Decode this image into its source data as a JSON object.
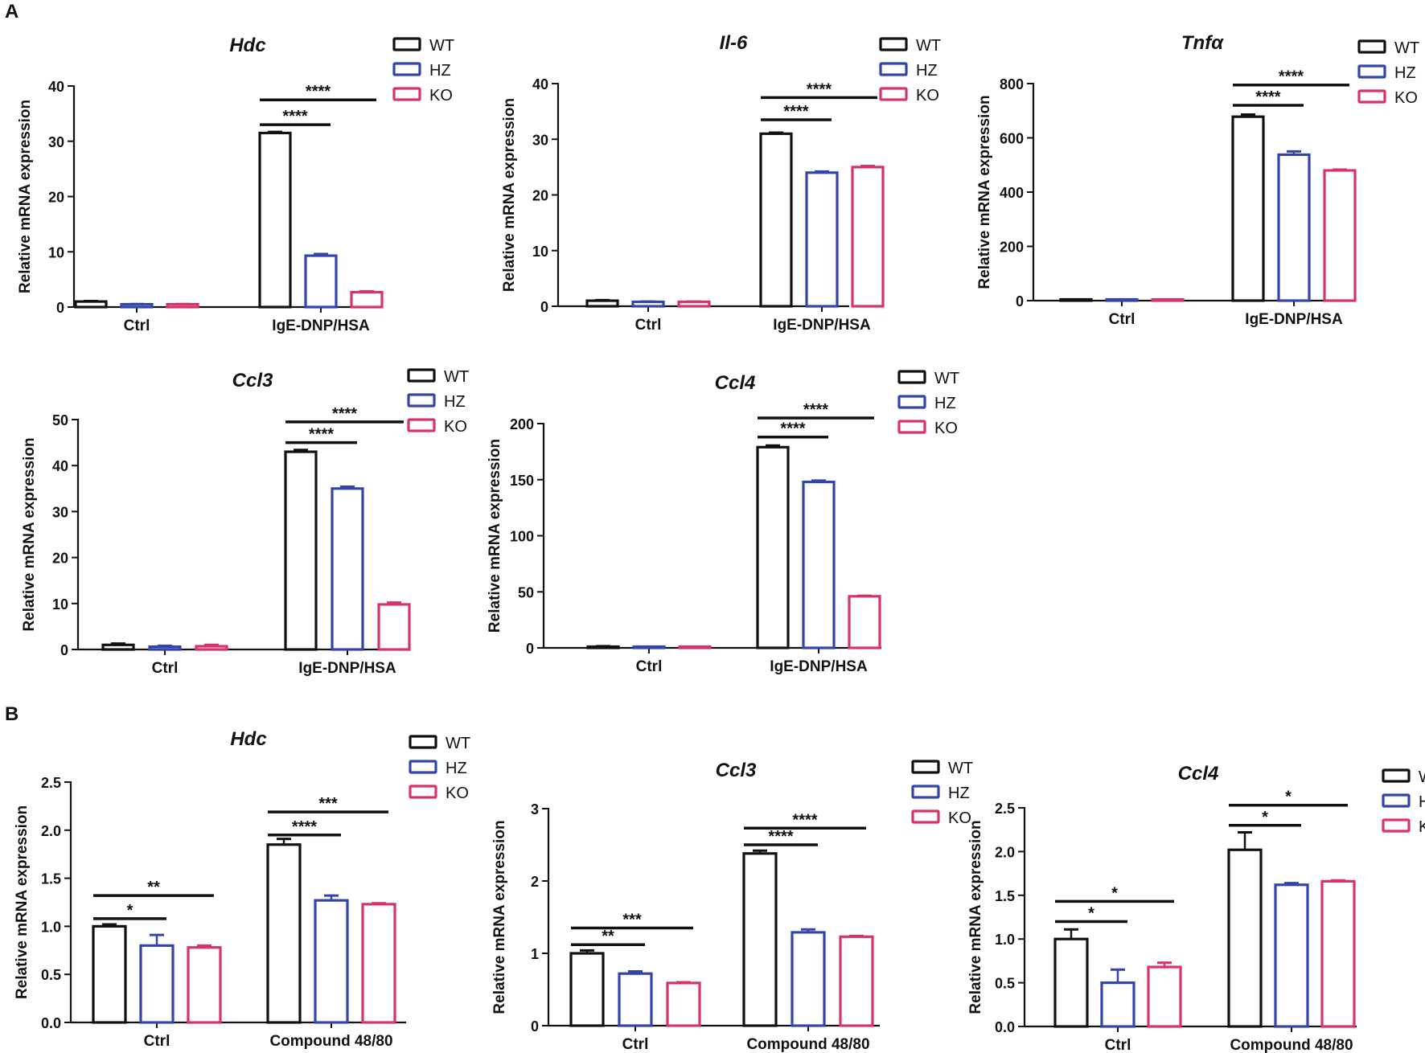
{
  "panel_labels": [
    "A",
    "B"
  ],
  "colors": {
    "WT": "#111111",
    "HZ": "#3344aa",
    "KO": "#d6336c",
    "axis": "#111111"
  },
  "chart_data": [
    {
      "type": "bar",
      "title": "Hdc",
      "ylabel": "Relative mRNA expression",
      "ylim": [
        0,
        40
      ],
      "yticks": [
        "0",
        "10",
        "20",
        "30",
        "40"
      ],
      "categories": [
        "Ctrl",
        "IgE-DNP/HSA"
      ],
      "legend": [
        "WT",
        "HZ",
        "KO"
      ],
      "series": [
        {
          "name": "WT",
          "values": [
            1.0,
            31.5
          ],
          "errors": [
            0.1,
            0.2
          ]
        },
        {
          "name": "HZ",
          "values": [
            0.5,
            9.3
          ],
          "errors": [
            0.05,
            0.3
          ]
        },
        {
          "name": "KO",
          "values": [
            0.5,
            2.7
          ],
          "errors": [
            0.05,
            0.15
          ]
        }
      ],
      "significance": [
        {
          "label": "****",
          "group": 1,
          "from": 0,
          "to": 1,
          "y": 33
        },
        {
          "label": "****",
          "group": 1,
          "from": 0,
          "to": 2,
          "y": 37.5
        }
      ]
    },
    {
      "type": "bar",
      "title": "Il-6",
      "ylabel": "Relative mRNA expression",
      "ylim": [
        0,
        40
      ],
      "yticks": [
        "0",
        "10",
        "20",
        "30",
        "40"
      ],
      "categories": [
        "Ctrl",
        "IgE-DNP/HSA"
      ],
      "legend": [
        "WT",
        "HZ",
        "KO"
      ],
      "series": [
        {
          "name": "WT",
          "values": [
            1.0,
            31.0
          ],
          "errors": [
            0.1,
            0.2
          ]
        },
        {
          "name": "HZ",
          "values": [
            0.8,
            24.0
          ],
          "errors": [
            0.05,
            0.2
          ]
        },
        {
          "name": "KO",
          "values": [
            0.8,
            25.0
          ],
          "errors": [
            0.05,
            0.2
          ]
        }
      ],
      "significance": [
        {
          "label": "****",
          "group": 1,
          "from": 0,
          "to": 1,
          "y": 33.5
        },
        {
          "label": "****",
          "group": 1,
          "from": 0,
          "to": 2,
          "y": 37.5
        }
      ]
    },
    {
      "type": "bar",
      "title": "Tnfα",
      "ylabel": "Relative mRNA expression",
      "ylim": [
        0,
        800
      ],
      "yticks": [
        "0",
        "200",
        "400",
        "600",
        "800"
      ],
      "categories": [
        "Ctrl",
        "IgE-DNP/HSA"
      ],
      "legend": [
        "WT",
        "HZ",
        "KO"
      ],
      "series": [
        {
          "name": "WT",
          "values": [
            1,
            678
          ],
          "errors": [
            0.5,
            8
          ]
        },
        {
          "name": "HZ",
          "values": [
            1,
            538
          ],
          "errors": [
            0.5,
            12
          ]
        },
        {
          "name": "KO",
          "values": [
            1,
            480
          ],
          "errors": [
            0.5,
            3
          ]
        }
      ],
      "significance": [
        {
          "label": "****",
          "group": 1,
          "from": 0,
          "to": 1,
          "y": 720
        },
        {
          "label": "****",
          "group": 1,
          "from": 0,
          "to": 2,
          "y": 795
        }
      ]
    },
    {
      "type": "bar",
      "title": "Ccl3",
      "ylabel": "Relative mRNA expression",
      "ylim": [
        0,
        50
      ],
      "yticks": [
        "0",
        "10",
        "20",
        "30",
        "40",
        "50"
      ],
      "categories": [
        "Ctrl",
        "IgE-DNP/HSA"
      ],
      "legend": [
        "WT",
        "HZ",
        "KO"
      ],
      "series": [
        {
          "name": "WT",
          "values": [
            1.0,
            43.0
          ],
          "errors": [
            0.3,
            0.4
          ]
        },
        {
          "name": "HZ",
          "values": [
            0.6,
            35.0
          ],
          "errors": [
            0.2,
            0.4
          ]
        },
        {
          "name": "KO",
          "values": [
            0.7,
            9.8
          ],
          "errors": [
            0.3,
            0.4
          ]
        }
      ],
      "significance": [
        {
          "label": "****",
          "group": 1,
          "from": 0,
          "to": 1,
          "y": 45
        },
        {
          "label": "****",
          "group": 1,
          "from": 0,
          "to": 2,
          "y": 49.5
        }
      ]
    },
    {
      "type": "bar",
      "title": "Ccl4",
      "ylabel": "Relative mRNA expression",
      "ylim": [
        0,
        200
      ],
      "yticks": [
        "0",
        "50",
        "100",
        "150",
        "200"
      ],
      "categories": [
        "Ctrl",
        "IgE-DNP/HSA"
      ],
      "legend": [
        "WT",
        "HZ",
        "KO"
      ],
      "series": [
        {
          "name": "WT",
          "values": [
            1,
            179
          ],
          "errors": [
            0.5,
            1.5
          ]
        },
        {
          "name": "HZ",
          "values": [
            0.5,
            148
          ],
          "errors": [
            0.3,
            1.2
          ]
        },
        {
          "name": "KO",
          "values": [
            0.5,
            46
          ],
          "errors": [
            0.3,
            0.5
          ]
        }
      ],
      "significance": [
        {
          "label": "****",
          "group": 1,
          "from": 0,
          "to": 1,
          "y": 188
        },
        {
          "label": "****",
          "group": 1,
          "from": 0,
          "to": 2,
          "y": 205
        }
      ]
    },
    {
      "type": "bar",
      "title": "Hdc",
      "ylabel": "Relative mRNA expression",
      "ylim": [
        0,
        2.5
      ],
      "yticks": [
        "0.0",
        "0.5",
        "1.0",
        "1.5",
        "2.0",
        "2.5"
      ],
      "categories": [
        "Ctrl",
        "Compound 48/80"
      ],
      "legend": [
        "WT",
        "HZ",
        "KO"
      ],
      "series": [
        {
          "name": "WT",
          "values": [
            1.0,
            1.85
          ],
          "errors": [
            0.02,
            0.06
          ]
        },
        {
          "name": "HZ",
          "values": [
            0.8,
            1.27
          ],
          "errors": [
            0.11,
            0.05
          ]
        },
        {
          "name": "KO",
          "values": [
            0.78,
            1.23
          ],
          "errors": [
            0.02,
            0.01
          ]
        }
      ],
      "significance": [
        {
          "label": "*",
          "group": 0,
          "from": 0,
          "to": 1,
          "y": 1.08
        },
        {
          "label": "**",
          "group": 0,
          "from": 0,
          "to": 2,
          "y": 1.32
        },
        {
          "label": "****",
          "group": 1,
          "from": 0,
          "to": 1,
          "y": 1.95
        },
        {
          "label": "***",
          "group": 1,
          "from": 0,
          "to": 2,
          "y": 2.19
        }
      ]
    },
    {
      "type": "bar",
      "title": "Ccl3",
      "ylabel": "Relative mRNA expression",
      "ylim": [
        0,
        3
      ],
      "yticks": [
        "0",
        "1",
        "2",
        "3"
      ],
      "categories": [
        "Ctrl",
        "Compound 48/80"
      ],
      "legend": [
        "WT",
        "HZ",
        "KO"
      ],
      "series": [
        {
          "name": "WT",
          "values": [
            1.0,
            2.38
          ],
          "errors": [
            0.04,
            0.04
          ]
        },
        {
          "name": "HZ",
          "values": [
            0.72,
            1.29
          ],
          "errors": [
            0.03,
            0.04
          ]
        },
        {
          "name": "KO",
          "values": [
            0.59,
            1.23
          ],
          "errors": [
            0.01,
            0.01
          ]
        }
      ],
      "significance": [
        {
          "label": "**",
          "group": 0,
          "from": 0,
          "to": 1,
          "y": 1.12
        },
        {
          "label": "***",
          "group": 0,
          "from": 0,
          "to": 2,
          "y": 1.35
        },
        {
          "label": "****",
          "group": 1,
          "from": 0,
          "to": 1,
          "y": 2.5
        },
        {
          "label": "****",
          "group": 1,
          "from": 0,
          "to": 2,
          "y": 2.73
        }
      ]
    },
    {
      "type": "bar",
      "title": "Ccl4",
      "ylabel": "Relative mRNA expression",
      "ylim": [
        0,
        2.5
      ],
      "yticks": [
        "0.0",
        "0.5",
        "1.0",
        "1.5",
        "2.0",
        "2.5"
      ],
      "categories": [
        "Ctrl",
        "Compound 48/80"
      ],
      "legend": [
        "WT",
        "HZ",
        "KO"
      ],
      "series": [
        {
          "name": "WT",
          "values": [
            1.0,
            2.02
          ],
          "errors": [
            0.11,
            0.2
          ]
        },
        {
          "name": "HZ",
          "values": [
            0.5,
            1.62
          ],
          "errors": [
            0.15,
            0.02
          ]
        },
        {
          "name": "KO",
          "values": [
            0.68,
            1.66
          ],
          "errors": [
            0.05,
            0.01
          ]
        }
      ],
      "significance": [
        {
          "label": "*",
          "group": 0,
          "from": 0,
          "to": 1,
          "y": 1.2
        },
        {
          "label": "*",
          "group": 0,
          "from": 0,
          "to": 2,
          "y": 1.43
        },
        {
          "label": "*",
          "group": 1,
          "from": 0,
          "to": 1,
          "y": 2.3
        },
        {
          "label": "*",
          "group": 1,
          "from": 0,
          "to": 2,
          "y": 2.53
        }
      ]
    }
  ]
}
